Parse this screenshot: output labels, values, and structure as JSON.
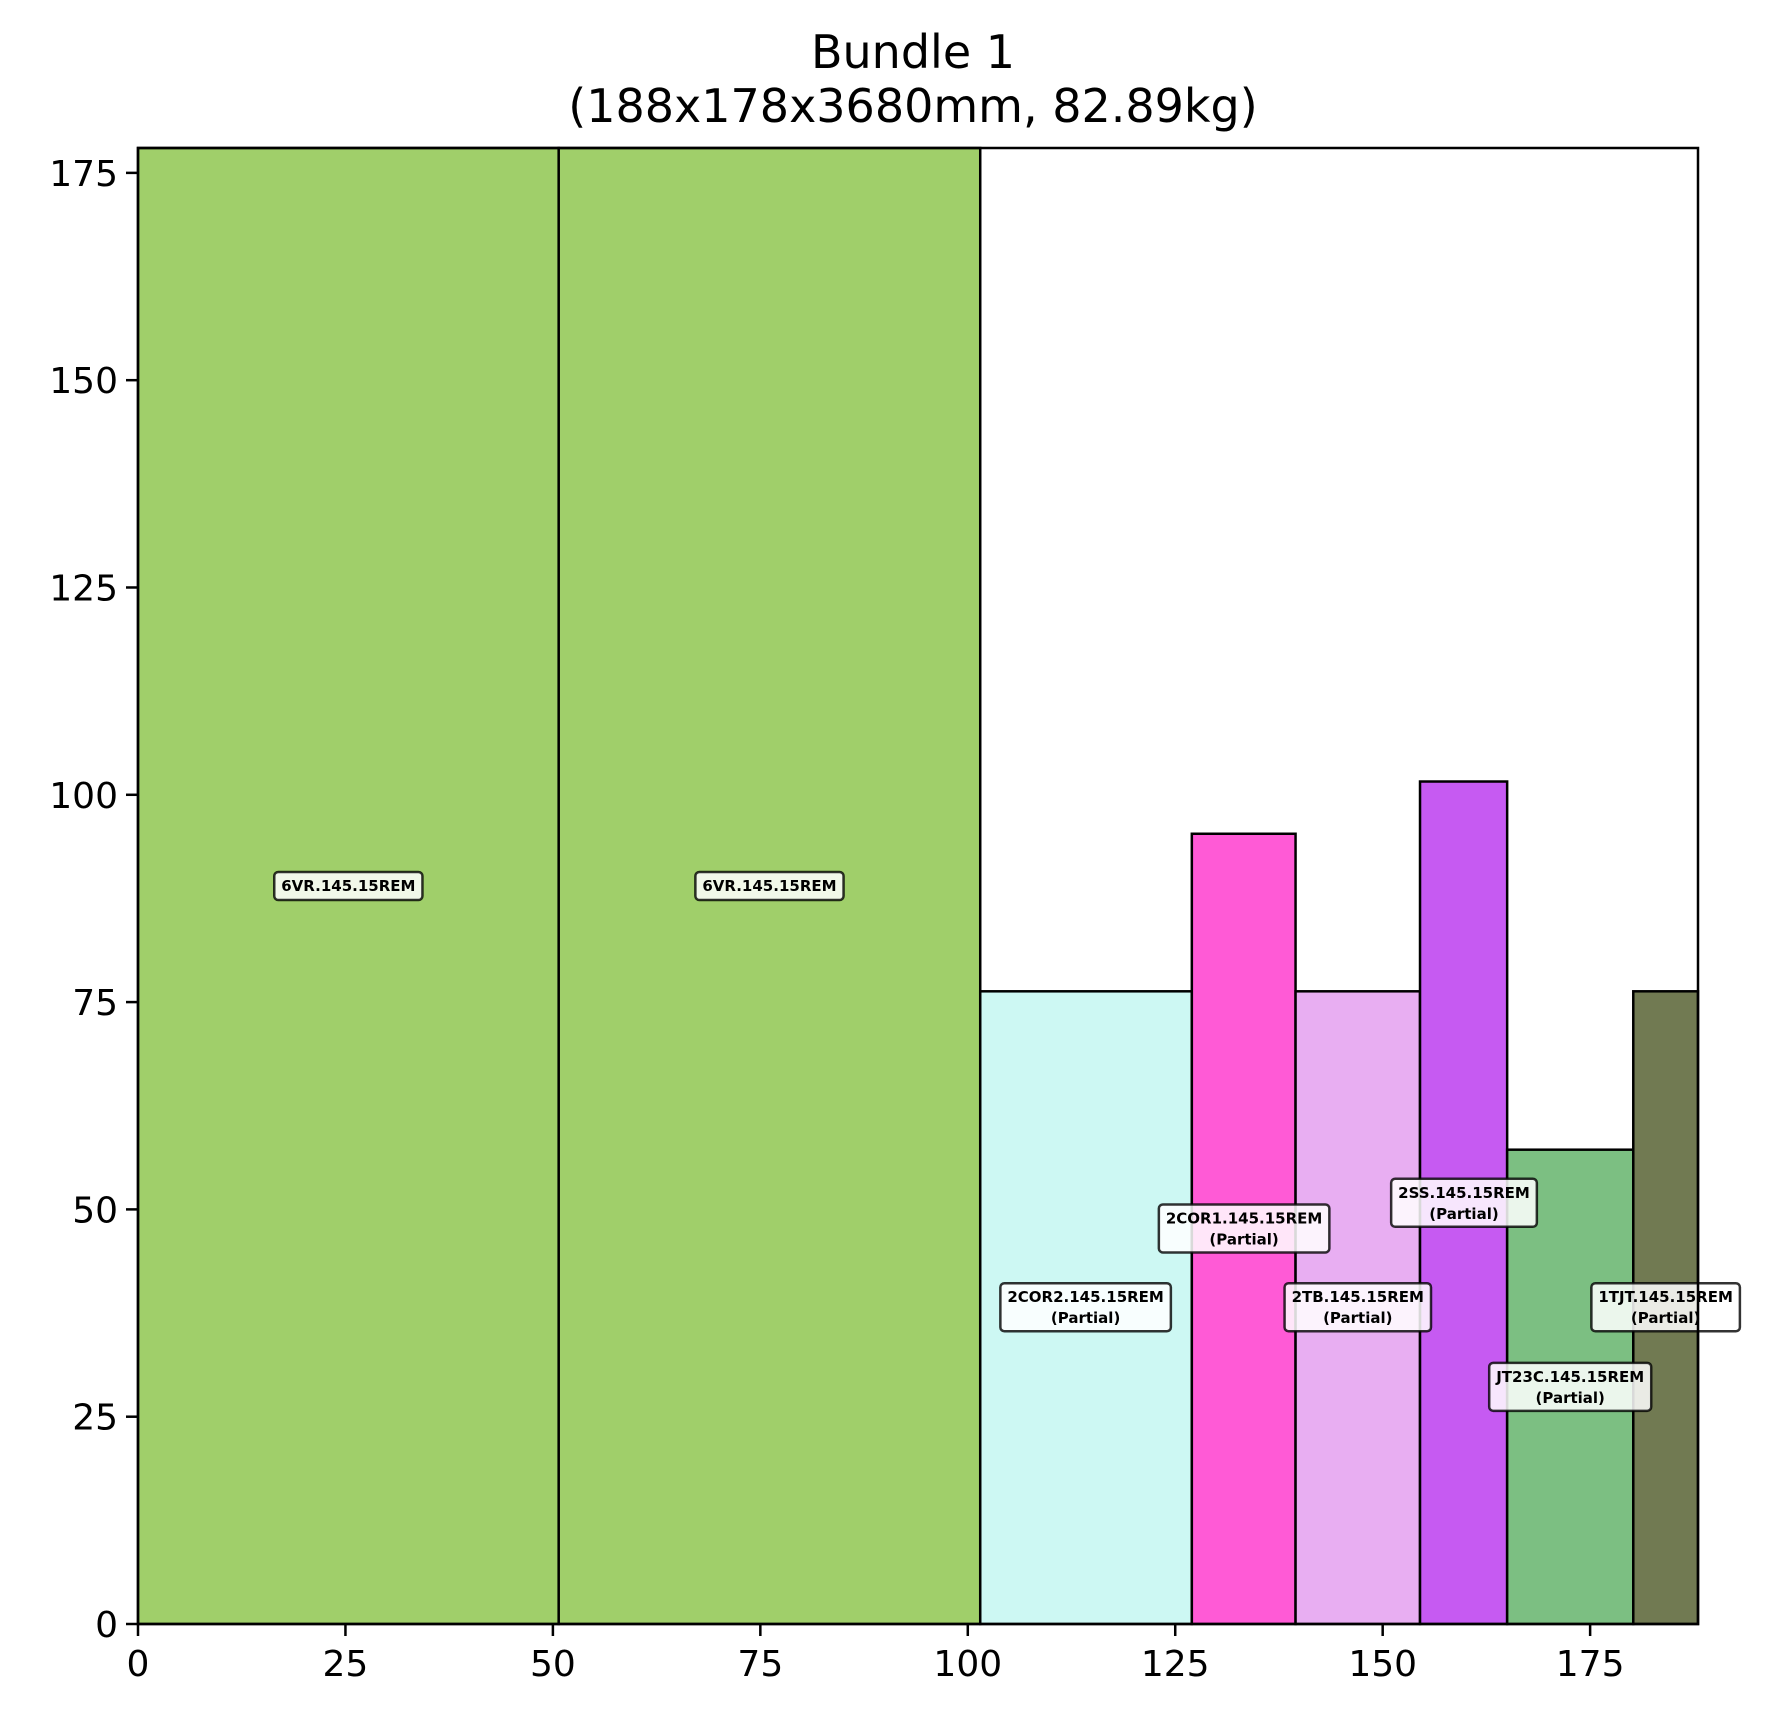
{
  "chart_data": {
    "type": "bar",
    "title": "Bundle 1",
    "subtitle": "(188x178x3680mm, 82.89kg)",
    "xlabel": "",
    "ylabel": "",
    "xlim": [
      0,
      188
    ],
    "ylim": [
      0,
      178
    ],
    "xticks": [
      "0",
      "25",
      "50",
      "75",
      "100",
      "125",
      "150",
      "175"
    ],
    "yticks": [
      "0",
      "25",
      "50",
      "75",
      "100",
      "125",
      "150",
      "175"
    ],
    "grid": false,
    "pieces": [
      {
        "name": "6VR.145.15REM",
        "partial": "",
        "x0": 0,
        "x1": 50.7,
        "height": 178,
        "color": "#a0cf6a",
        "label_x": 25.35,
        "label_y": 89
      },
      {
        "name": "6VR.145.15REM",
        "partial": "",
        "x0": 50.7,
        "x1": 101.5,
        "height": 178,
        "color": "#a0cf6a",
        "label_x": 76.1,
        "label_y": 89
      },
      {
        "name": "2COR2.145.15REM",
        "partial": "(Partial)",
        "x0": 101.5,
        "x1": 127,
        "height": 76.3,
        "color": "#cdf8f3",
        "label_x": 114.2,
        "label_y": 38.2
      },
      {
        "name": "2COR1.145.15REM",
        "partial": "(Partial)",
        "x0": 127,
        "x1": 139.5,
        "height": 95.3,
        "color": "#ff5ad6",
        "label_x": 133.3,
        "label_y": 47.7
      },
      {
        "name": "2TB.145.15REM",
        "partial": "(Partial)",
        "x0": 139.5,
        "x1": 154.5,
        "height": 76.3,
        "color": "#e8aef2",
        "label_x": 147,
        "label_y": 38.2
      },
      {
        "name": "2SS.145.15REM",
        "partial": "(Partial)",
        "x0": 154.5,
        "x1": 165,
        "height": 101.6,
        "color": "#c65af2",
        "label_x": 159.8,
        "label_y": 50.8
      },
      {
        "name": "JT23C.145.15REM",
        "partial": "(Partial)",
        "x0": 165,
        "x1": 180.2,
        "height": 57.2,
        "color": "#7cbf82",
        "label_x": 172.6,
        "label_y": 28.6
      },
      {
        "name": "1TJT.145.15REM",
        "partial": "(Partial)",
        "x0": 180.2,
        "x1": 188,
        "height": 76.3,
        "color": "#717a52",
        "label_x": 184.1,
        "label_y": 38.2
      }
    ]
  }
}
